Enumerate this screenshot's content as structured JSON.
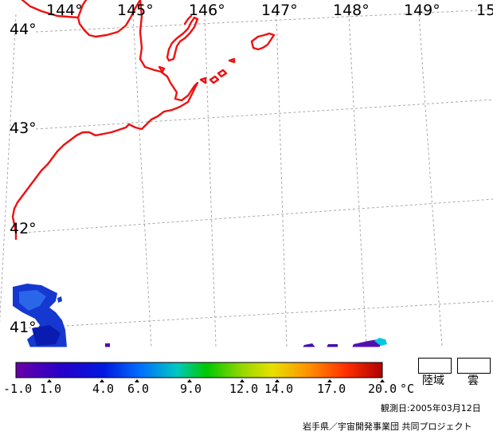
{
  "map": {
    "longitude_labels": [
      "144°",
      "145°",
      "146°",
      "147°",
      "148°",
      "149°",
      "15"
    ],
    "latitude_labels": [
      "44°",
      "43°",
      "42°",
      "41°"
    ],
    "coastline_color": "#ee1111",
    "grid_color": "#a8a8a8"
  },
  "colorbar": {
    "ticks": [
      "-1.0",
      "1.0",
      "4.0",
      "6.0",
      "9.0",
      "12.0",
      "14.0",
      "17.0",
      "20.0"
    ],
    "unit": "°C",
    "range": [
      -1.0,
      20.0
    ]
  },
  "legend": {
    "land_label": "陸域",
    "cloud_label": "雲"
  },
  "footer": {
    "observation_date": "観測日:2005年03月12日",
    "credit": "岩手県／宇宙開発事業団 共同プロジェクト"
  }
}
